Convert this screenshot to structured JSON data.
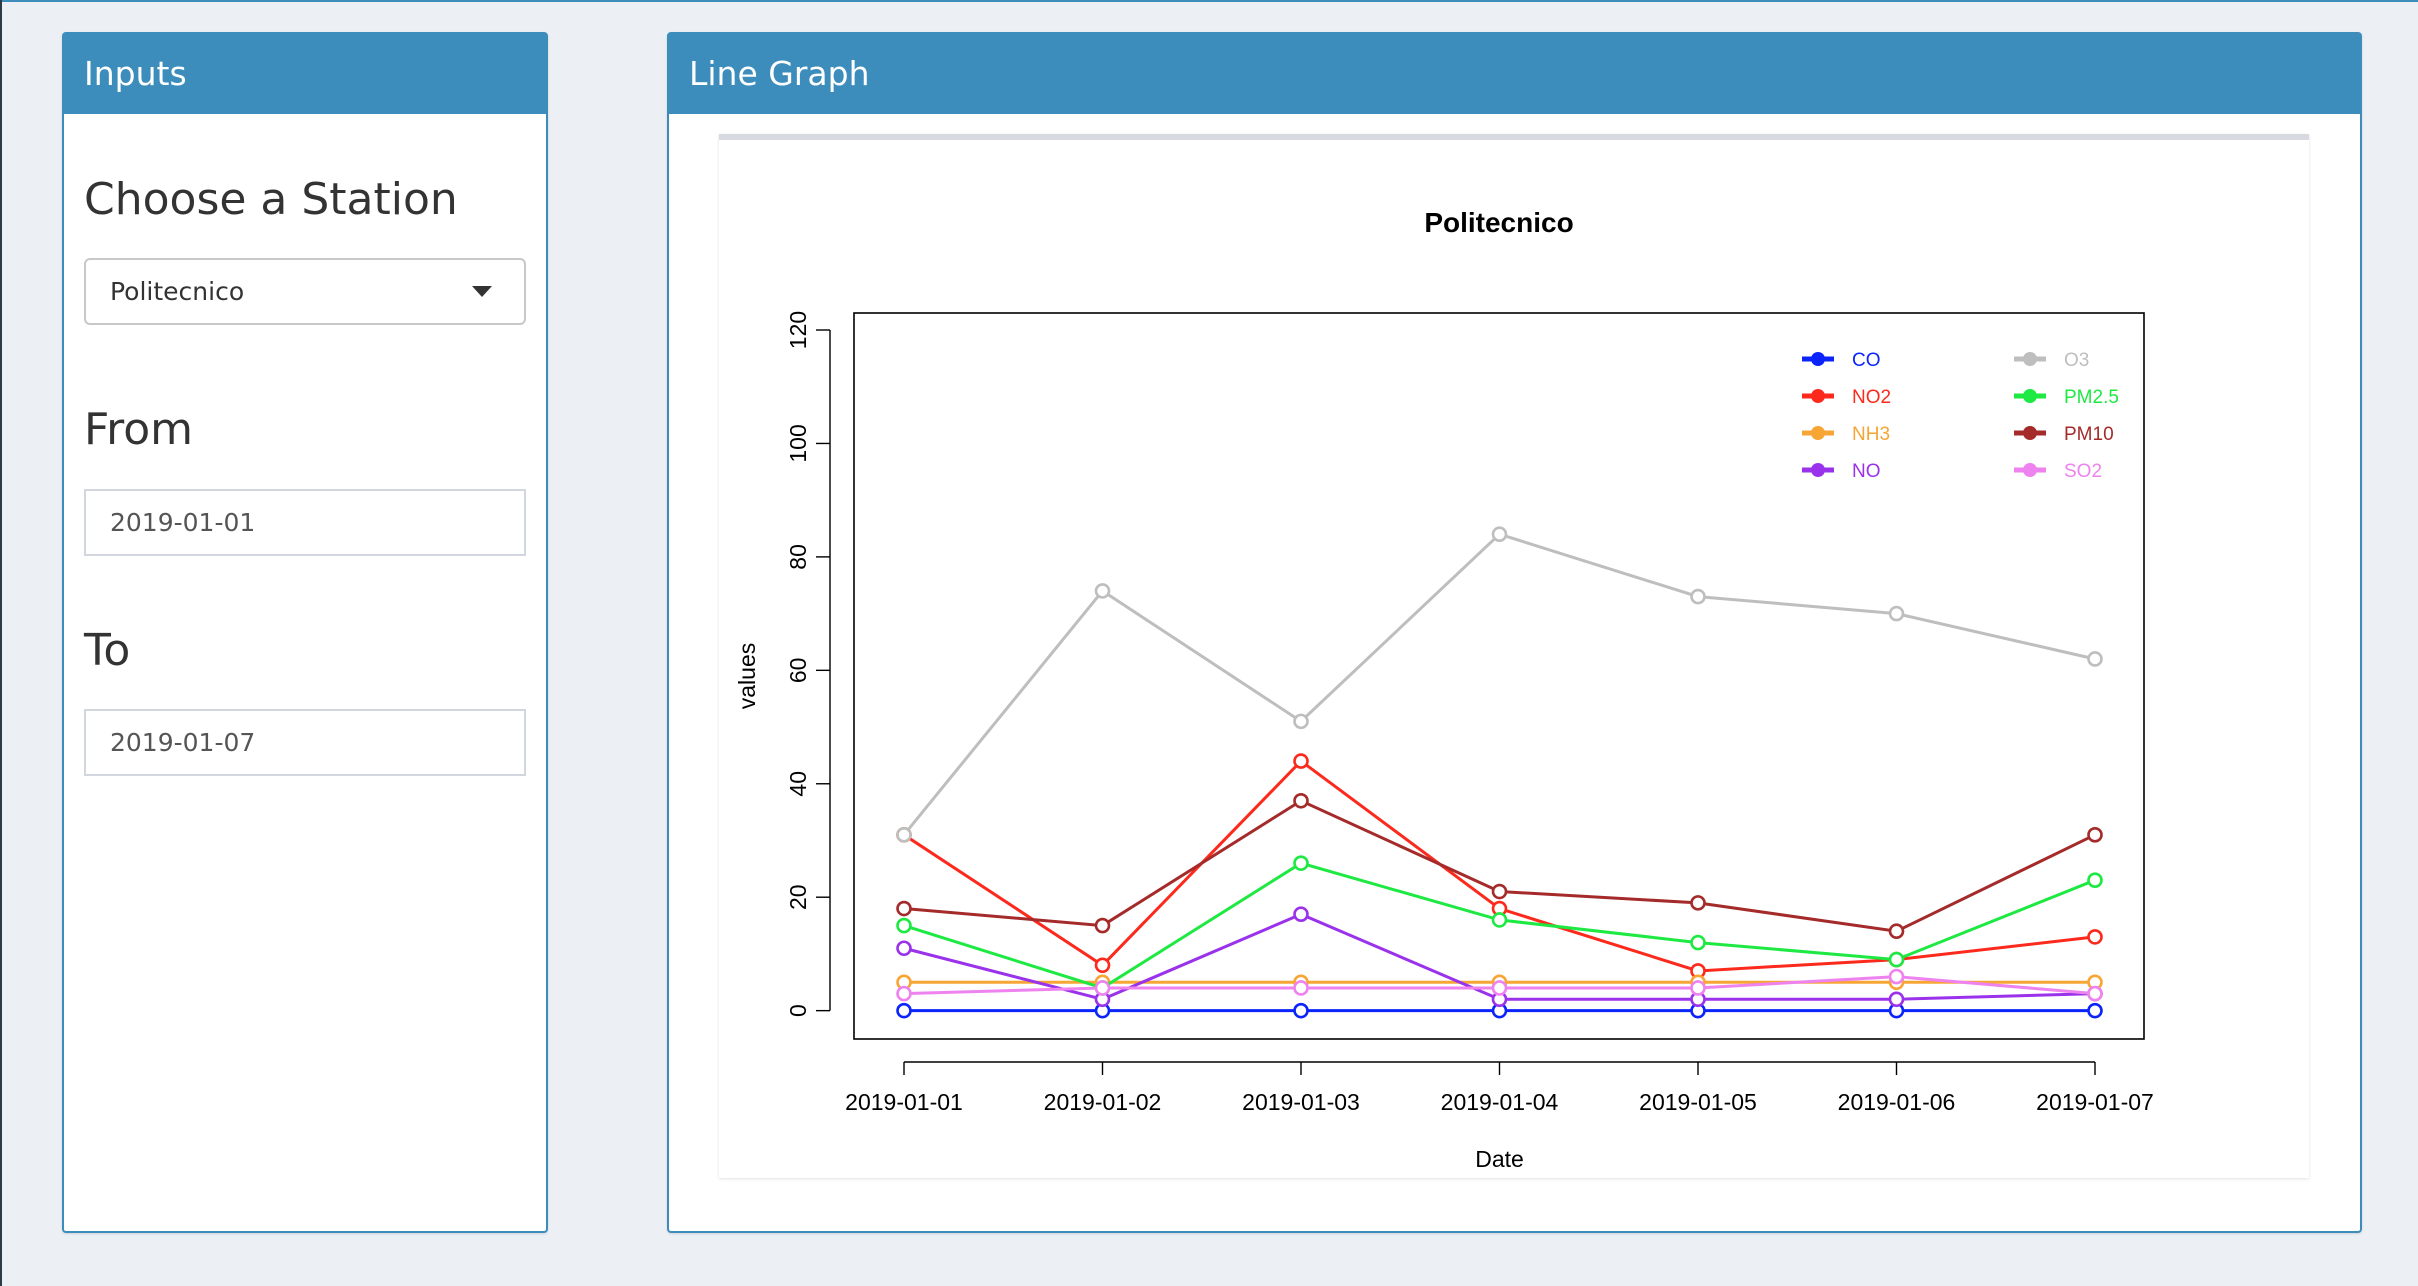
{
  "inputs": {
    "title": "Inputs",
    "station_label": "Choose a Station",
    "station_value": "Politecnico",
    "from_label": "From",
    "from_value": "2019-01-01",
    "to_label": "To",
    "to_value": "2019-01-07"
  },
  "graph": {
    "title": "Line Graph"
  },
  "colors": {
    "box_header": "#3c8dbc",
    "background": "#ecf0f5"
  },
  "chart_data": {
    "type": "line",
    "title": "Politecnico",
    "xlabel": "Date",
    "ylabel": "values",
    "ylim": [
      -5,
      123
    ],
    "yticks": [
      0,
      20,
      40,
      60,
      80,
      100,
      120
    ],
    "x": [
      "2019-01-01",
      "2019-01-02",
      "2019-01-03",
      "2019-01-04",
      "2019-01-05",
      "2019-01-06",
      "2019-01-07"
    ],
    "legend_position": "top-right",
    "grid": false,
    "series": [
      {
        "name": "CO",
        "color": "#0b24fb",
        "values": [
          0,
          0,
          0,
          0,
          0,
          0,
          0
        ]
      },
      {
        "name": "NO2",
        "color": "#fc2a1c",
        "values": [
          31,
          8,
          44,
          18,
          7,
          9,
          13
        ]
      },
      {
        "name": "NH3",
        "color": "#f7a535",
        "values": [
          5,
          5,
          5,
          5,
          5,
          5,
          5
        ]
      },
      {
        "name": "NO",
        "color": "#9a32eb",
        "values": [
          11,
          2,
          17,
          2,
          2,
          2,
          3
        ]
      },
      {
        "name": "O3",
        "color": "#bebebe",
        "values": [
          31,
          74,
          51,
          84,
          73,
          70,
          62
        ]
      },
      {
        "name": "PM2.5",
        "color": "#1ee942",
        "values": [
          15,
          4,
          26,
          16,
          12,
          9,
          23
        ]
      },
      {
        "name": "PM10",
        "color": "#a52a2a",
        "values": [
          18,
          15,
          37,
          21,
          19,
          14,
          31
        ]
      },
      {
        "name": "SO2",
        "color": "#ee82ee",
        "values": [
          3,
          4,
          4,
          4,
          4,
          6,
          3
        ]
      }
    ]
  }
}
